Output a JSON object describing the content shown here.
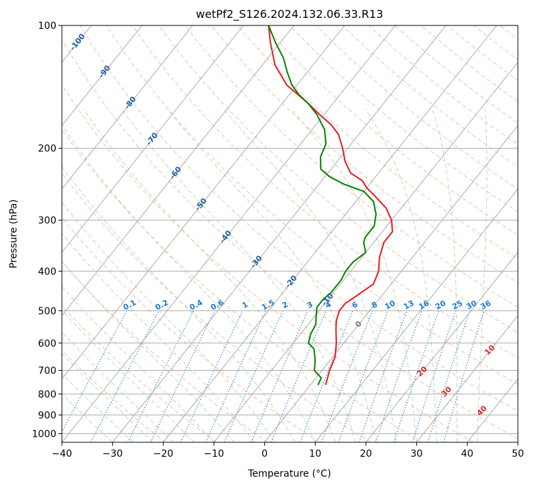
{
  "chart_data": {
    "type": "line",
    "diagram": "skew-T log-P",
    "title": "wetPf2_S126.2024.132.06.33.R13",
    "xlabel": "Temperature (°C)",
    "ylabel": "Pressure (hPa)",
    "xlim": [
      -40,
      50
    ],
    "ylim": [
      1050,
      100
    ],
    "y_scale": "log",
    "x_ticks": [
      -40,
      -30,
      -20,
      -10,
      0,
      10,
      20,
      30,
      40,
      50
    ],
    "y_ticks": [
      1000,
      900,
      800,
      700,
      600,
      500,
      400,
      300,
      200,
      100
    ],
    "grid": true,
    "colors": {
      "temperature": "#e41a1c",
      "dewpoint": "#008000",
      "isotherm": "#aaaaaa",
      "dry_adiabat": "#f4a582",
      "moist_adiabat": "#a6d5a6",
      "mixing_ratio": "#1f78d1",
      "isotherm_label": "#1f5fa0",
      "moist_label": "#d62728"
    },
    "series": [
      {
        "name": "",
        "role": "temperature",
        "points": [
          {
            "p": 760,
            "t": 3
          },
          {
            "p": 700,
            "t": 1.5
          },
          {
            "p": 650,
            "t": 0.5
          },
          {
            "p": 600,
            "t": -1.5
          },
          {
            "p": 560,
            "t": -3.5
          },
          {
            "p": 530,
            "t": -5
          },
          {
            "p": 500,
            "t": -6
          },
          {
            "p": 480,
            "t": -6
          },
          {
            "p": 460,
            "t": -5
          },
          {
            "p": 430,
            "t": -3.5
          },
          {
            "p": 400,
            "t": -4.5
          },
          {
            "p": 370,
            "t": -6.5
          },
          {
            "p": 340,
            "t": -8
          },
          {
            "p": 320,
            "t": -8
          },
          {
            "p": 300,
            "t": -10
          },
          {
            "p": 280,
            "t": -13
          },
          {
            "p": 260,
            "t": -17.5
          },
          {
            "p": 250,
            "t": -20
          },
          {
            "p": 240,
            "t": -22
          },
          {
            "p": 230,
            "t": -25.5
          },
          {
            "p": 215,
            "t": -28.5
          },
          {
            "p": 200,
            "t": -31
          },
          {
            "p": 185,
            "t": -34
          },
          {
            "p": 175,
            "t": -37
          },
          {
            "p": 165,
            "t": -41
          },
          {
            "p": 155,
            "t": -45
          },
          {
            "p": 140,
            "t": -52
          },
          {
            "p": 125,
            "t": -57.5
          },
          {
            "p": 110,
            "t": -62
          },
          {
            "p": 100,
            "t": -65
          }
        ]
      },
      {
        "name": "",
        "role": "dewpoint",
        "points": [
          {
            "p": 760,
            "t": 1.5
          },
          {
            "p": 730,
            "t": 1
          },
          {
            "p": 700,
            "t": -1.5
          },
          {
            "p": 660,
            "t": -3
          },
          {
            "p": 620,
            "t": -5
          },
          {
            "p": 600,
            "t": -7
          },
          {
            "p": 570,
            "t": -8
          },
          {
            "p": 540,
            "t": -8.5
          },
          {
            "p": 510,
            "t": -10
          },
          {
            "p": 490,
            "t": -11
          },
          {
            "p": 470,
            "t": -11
          },
          {
            "p": 450,
            "t": -10.5
          },
          {
            "p": 420,
            "t": -10.5
          },
          {
            "p": 400,
            "t": -11
          },
          {
            "p": 380,
            "t": -11
          },
          {
            "p": 360,
            "t": -10
          },
          {
            "p": 340,
            "t": -12
          },
          {
            "p": 330,
            "t": -12.5
          },
          {
            "p": 310,
            "t": -12.5
          },
          {
            "p": 290,
            "t": -14
          },
          {
            "p": 270,
            "t": -16.5
          },
          {
            "p": 255,
            "t": -20
          },
          {
            "p": 245,
            "t": -25
          },
          {
            "p": 235,
            "t": -29
          },
          {
            "p": 225,
            "t": -32
          },
          {
            "p": 210,
            "t": -34
          },
          {
            "p": 195,
            "t": -35
          },
          {
            "p": 180,
            "t": -37.5
          },
          {
            "p": 165,
            "t": -41.5
          },
          {
            "p": 155,
            "t": -45
          },
          {
            "p": 148,
            "t": -48
          },
          {
            "p": 140,
            "t": -51
          },
          {
            "p": 130,
            "t": -54
          },
          {
            "p": 120,
            "t": -57
          },
          {
            "p": 110,
            "t": -61
          },
          {
            "p": 100,
            "t": -65
          }
        ]
      }
    ],
    "isotherm_labels": [
      "-100",
      "-90",
      "-80",
      "-70",
      "-60",
      "-50",
      "-40",
      "-30",
      "-20",
      "-10",
      "0"
    ],
    "mixing_ratio_labels": [
      "0.1",
      "0.2",
      "0.4",
      "0.6",
      "1",
      "1.5",
      "2",
      "3",
      "4",
      "6",
      "8",
      "10",
      "13",
      "16",
      "20",
      "25",
      "30",
      "36"
    ],
    "moist_adiabat_labels": [
      "10",
      "20",
      "30",
      "40"
    ]
  }
}
